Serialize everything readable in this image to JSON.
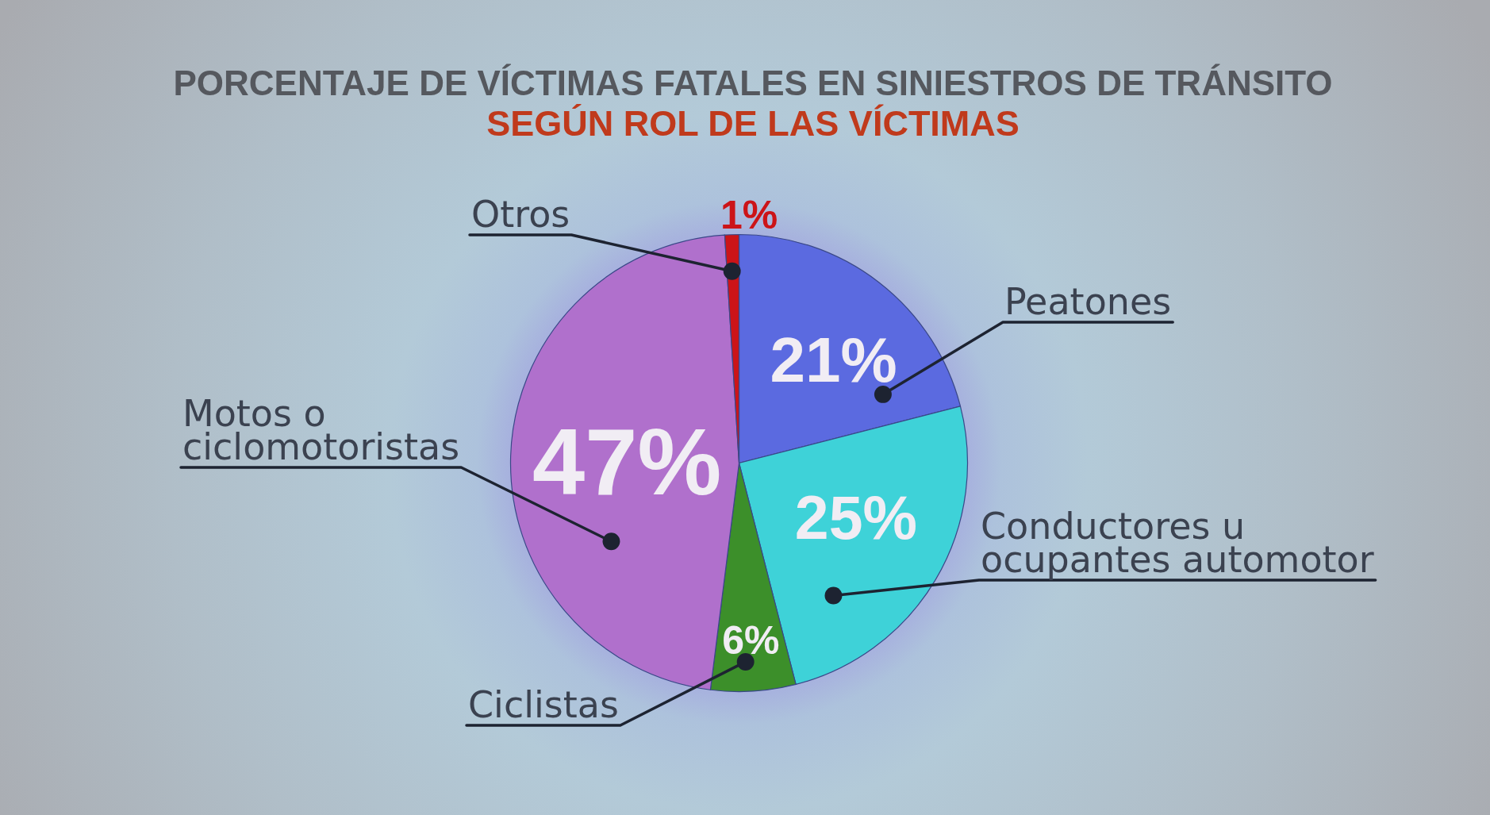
{
  "chart_data": {
    "type": "pie",
    "title": "PORCENTAJE DE VÍCTIMAS FATALES EN SINIESTROS DE TRÁNSITO",
    "subtitle": "SEGÚN ROL DE LAS VÍCTIMAS",
    "categories": [
      "Peatones",
      "Conductores u ocupantes automotor",
      "Ciclistas",
      "Motos o ciclomotoristas",
      "Otros"
    ],
    "values": [
      21,
      25,
      6,
      47,
      1
    ],
    "colors": [
      "#5b6ae0",
      "#3ed2d8",
      "#3c8f2a",
      "#b070cc",
      "#cc1418"
    ],
    "value_labels": [
      "21%",
      "25%",
      "6%",
      "47%",
      "1%"
    ]
  }
}
